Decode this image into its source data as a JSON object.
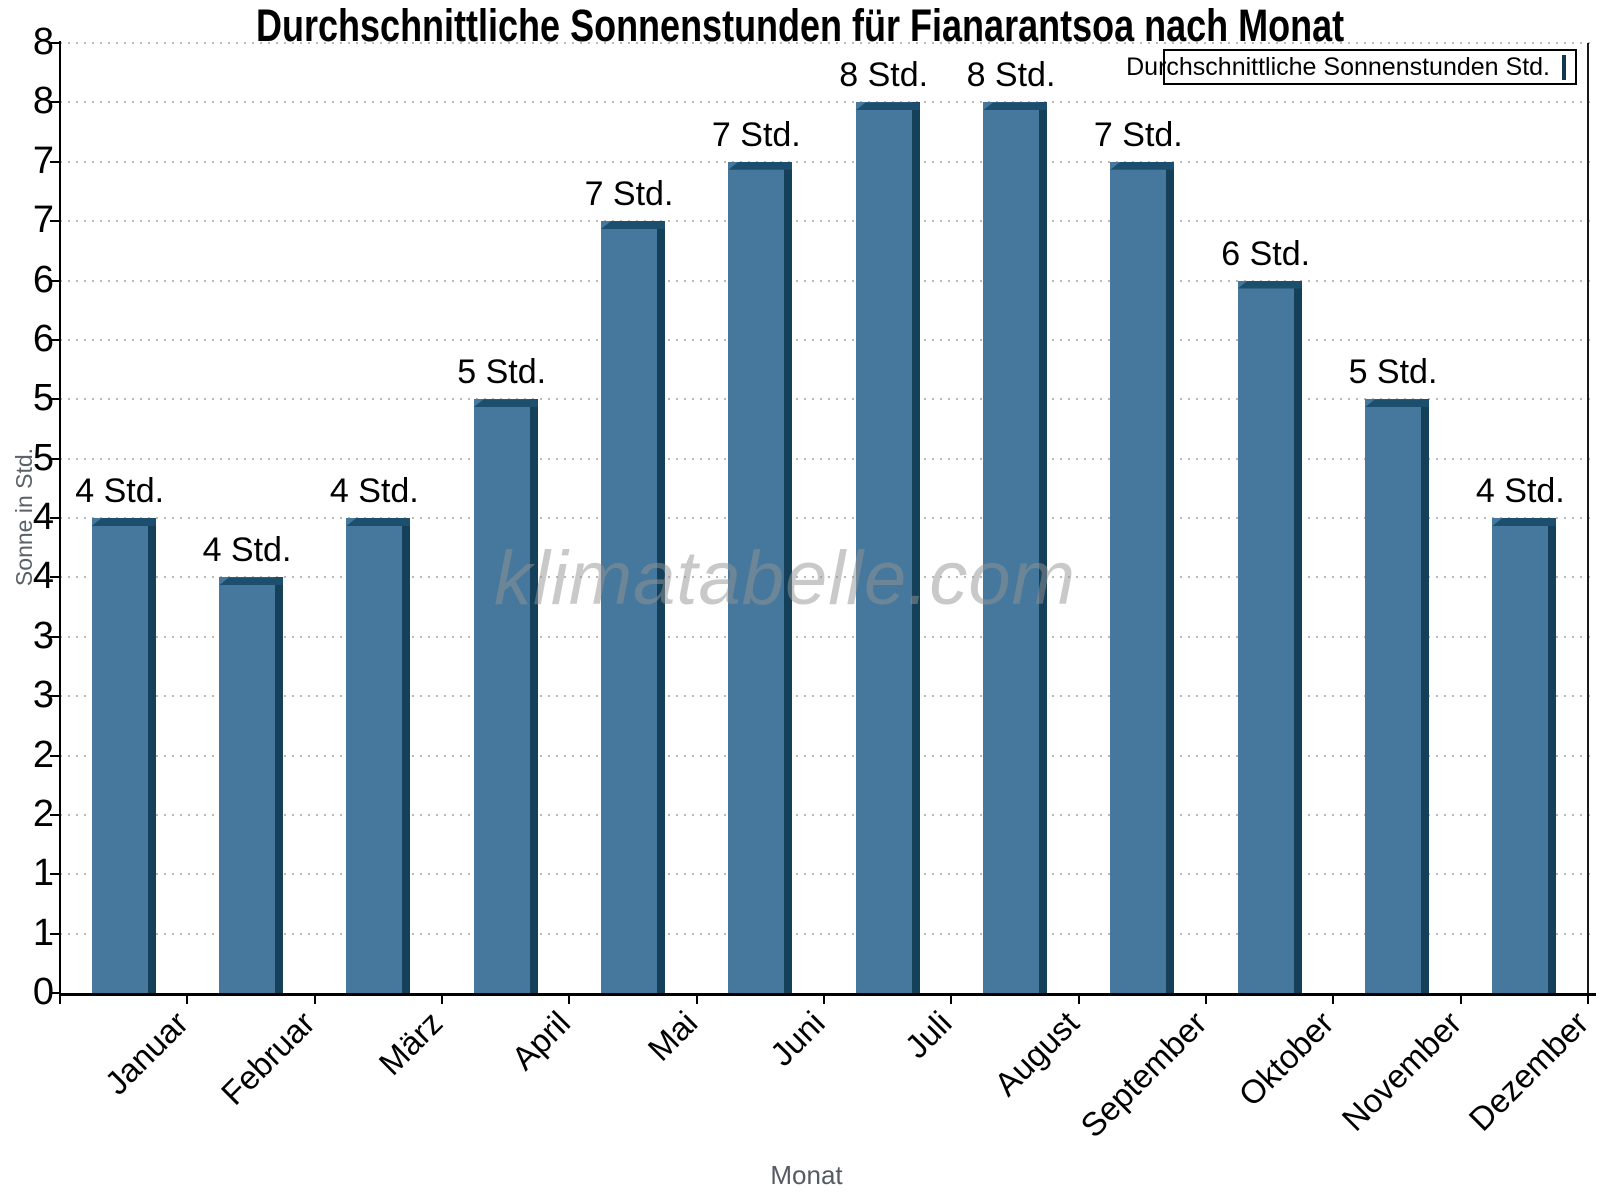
{
  "title": "Durchschnittliche Sonnenstunden für Fianarantsoa nach Monat",
  "legend": {
    "label": "Durchschnittliche Sonnenstunden Std."
  },
  "watermark": "klimatabelle.com",
  "chart_data": {
    "type": "bar",
    "title": "Durchschnittliche Sonnenstunden für Fianarantsoa nach Monat",
    "xlabel": "Monat",
    "ylabel": "Sonne in Std.",
    "categories": [
      "Januar",
      "Februar",
      "März",
      "April",
      "Mai",
      "Juni",
      "Juli",
      "August",
      "September",
      "Oktober",
      "November",
      "Dezember"
    ],
    "values": [
      4.0,
      3.5,
      4.0,
      5.0,
      6.5,
      7.0,
      7.5,
      7.5,
      7.0,
      6.0,
      5.0,
      4.0
    ],
    "bar_labels": [
      "4 Std.",
      "4 Std.",
      "4 Std.",
      "5 Std.",
      "7 Std.",
      "7 Std.",
      "8 Std.",
      "8 Std.",
      "7 Std.",
      "6 Std.",
      "5 Std.",
      "4 Std."
    ],
    "series_name": "Durchschnittliche Sonnenstunden Std.",
    "ylim": [
      0,
      8
    ],
    "ytick_step": 0.5,
    "ytick_labels_bottom_up": [
      "0",
      "1",
      "1",
      "2",
      "2",
      "3",
      "3",
      "4",
      "4",
      "5",
      "5",
      "6",
      "6",
      "7",
      "7",
      "8",
      "8"
    ],
    "grid": "horizontal-dotted",
    "legend_position": "top-right",
    "colors": {
      "bar_face": "#45789C",
      "bar_side": "#15405A",
      "bar_top": "#1C4F6E",
      "grid": "#b9b9b9",
      "axis": "#000000",
      "muted_label": "#5a6168",
      "watermark": "#949494"
    }
  }
}
